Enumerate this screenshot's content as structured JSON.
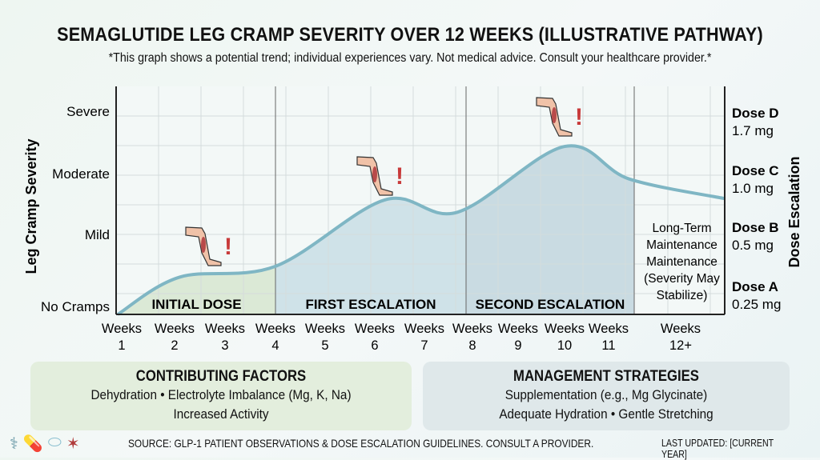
{
  "title": "SEMAGLUTIDE LEG CRAMP SEVERITY OVER 12 WEEKS (ILLUSTRATIVE PATHWAY)",
  "subtitle": "*This graph shows a potential trend; individual experiences vary. Not medical advice. Consult your healthcare provider.*",
  "chart_data": {
    "type": "area",
    "ylabel": "Leg Cramp Severity",
    "y2label": "Dose Escalation",
    "y_ticks": [
      "No Cramps",
      "Mild",
      "Moderate",
      "Severe"
    ],
    "y2_ticks": [
      {
        "dose": "Dose A",
        "amount": "0.25 mg"
      },
      {
        "dose": "Dose B",
        "amount": "0.5 mg"
      },
      {
        "dose": "Dose C",
        "amount": "1.0 mg"
      },
      {
        "dose": "Dose D",
        "amount": "1.7 mg"
      }
    ],
    "x_ticks": [
      [
        "Weeks",
        "1"
      ],
      [
        "Weeks",
        "2"
      ],
      [
        "Weeks",
        "3"
      ],
      [
        "Weeks",
        "4"
      ],
      [
        "Weeks",
        "5"
      ],
      [
        "Weeks",
        "6"
      ],
      [
        "Weeks",
        "7"
      ],
      [
        "Weeks",
        "8"
      ],
      [
        "Weeks",
        "9"
      ],
      [
        "Weeks",
        "10"
      ],
      [
        "Weeks",
        "11"
      ],
      [
        "Weeks",
        "12+"
      ]
    ],
    "ylim": [
      0,
      3
    ],
    "grid": true,
    "series": [
      {
        "x": [
          1,
          2.1,
          4,
          6.2,
          7.8,
          10,
          11.4,
          12.6
        ],
        "y": [
          0,
          0.55,
          0.71,
          1.69,
          1.51,
          2.48,
          2.0,
          1.71
        ]
      }
    ],
    "phases": [
      {
        "label": "INITIAL DOSE",
        "start": 1,
        "end": 4,
        "color": "#dbe9d6"
      },
      {
        "label": "FIRST ESCALATION",
        "start": 4,
        "end": 8,
        "color": "#cfe2e8"
      },
      {
        "label": "SECOND ESCALATION",
        "start": 8,
        "end": 11.5,
        "color": "#c9dbe2"
      },
      {
        "label": "Long-Term Maintenance Maintenance (Severity May Stabilize)",
        "start": 11.5,
        "end": 12.6,
        "color": "none"
      }
    ],
    "line_color": "#7fb6c4",
    "cramp_markers_at_weeks": [
      2.9,
      6.5,
      10
    ]
  },
  "factors": {
    "title": "CONTRIBUTING FACTORS",
    "line1": "Dehydration  • Electrolyte Imbalance (Mg, K, Na)",
    "line2": "Increased Activity"
  },
  "strategies": {
    "title": "MANAGEMENT STRATEGIES",
    "line1": "Supplementation (e.g., Mg Glycinate)",
    "line2": "Adequate Hydration • Gentle Stretching"
  },
  "footer": {
    "source": "SOURCE: GLP-1 PATIENT OBSERVATIONS & DOSE ESCALATION GUIDELINES. CONSULT A PROVIDER.",
    "updated": "LAST UPDATED: [CURRENT YEAR]",
    "icons": [
      "stethoscope-icon",
      "pills-icon",
      "capsule-icon",
      "muscle-cramp-icon"
    ]
  }
}
